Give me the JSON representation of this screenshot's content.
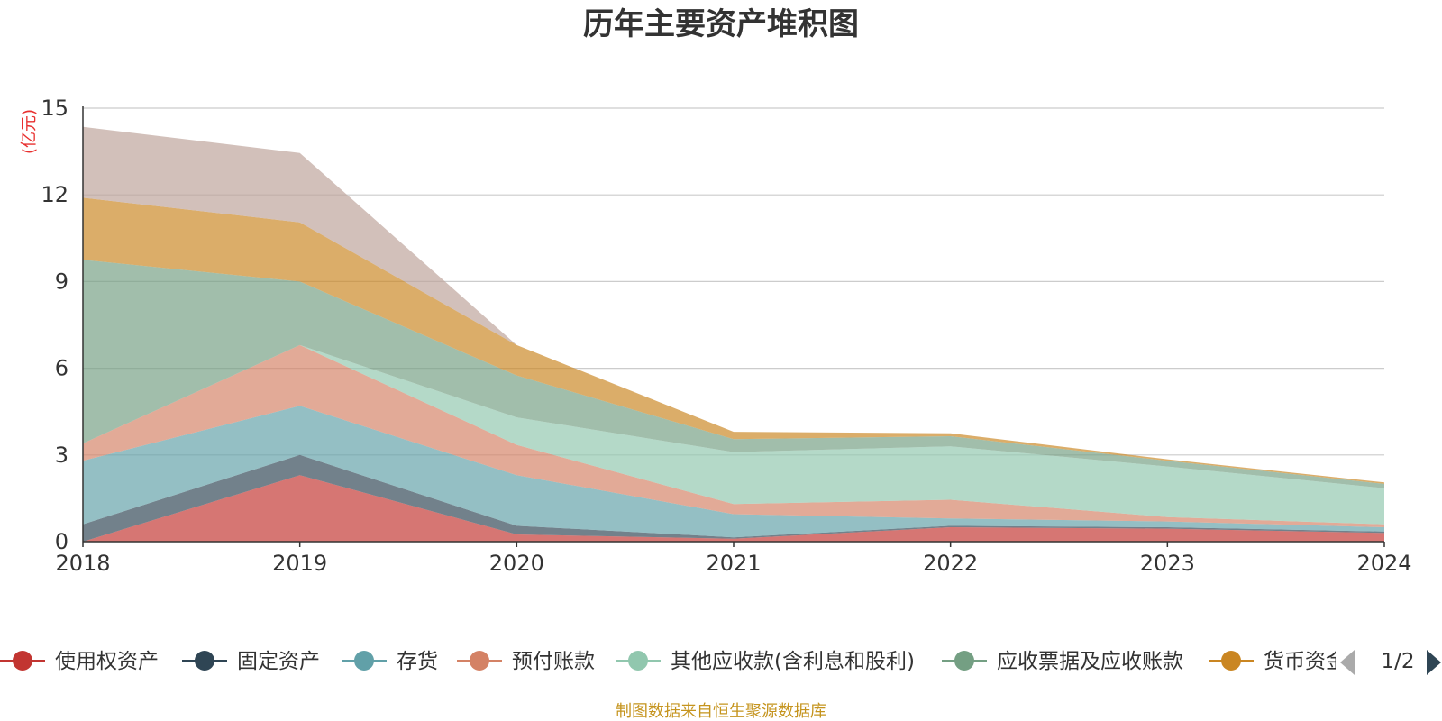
{
  "chart_data": {
    "type": "area",
    "stacked": true,
    "title": "历年主要资产堆积图",
    "ylabel": "(亿元)",
    "x": [
      "2018",
      "2019",
      "2020",
      "2021",
      "2022",
      "2023",
      "2024"
    ],
    "ylim": [
      0,
      15
    ],
    "yticks": [
      0,
      3,
      6,
      9,
      12,
      15
    ],
    "grid": true,
    "series": [
      {
        "name": "使用权资产",
        "color": "#c23531",
        "values": [
          0.0,
          2.3,
          0.25,
          0.1,
          0.5,
          0.45,
          0.3
        ]
      },
      {
        "name": "固定资产",
        "color": "#2f4554",
        "values": [
          0.6,
          0.7,
          0.3,
          0.05,
          0.05,
          0.05,
          0.05
        ]
      },
      {
        "name": "存货",
        "color": "#61a0a8",
        "values": [
          2.2,
          1.7,
          1.75,
          0.8,
          0.25,
          0.2,
          0.15
        ]
      },
      {
        "name": "预付账款",
        "color": "#d48265",
        "values": [
          0.6,
          2.1,
          1.05,
          0.35,
          0.65,
          0.15,
          0.1
        ]
      },
      {
        "name": "其他应收款(含利息和股利)",
        "color": "#91c7ae",
        "values": [
          0.0,
          0.0,
          0.95,
          1.8,
          1.85,
          1.75,
          1.25
        ]
      },
      {
        "name": "应收票据及应收账款",
        "color": "#749f83",
        "values": [
          6.35,
          2.2,
          1.45,
          0.45,
          0.35,
          0.2,
          0.15
        ]
      },
      {
        "name": "货币资金",
        "color": "#ca8622",
        "values": [
          2.15,
          2.05,
          1.05,
          0.25,
          0.1,
          0.05,
          0.05
        ]
      },
      {
        "name": "",
        "color": "#bda29a",
        "values": [
          2.45,
          2.4,
          0.0,
          0.0,
          0.0,
          0.0,
          0.0
        ]
      }
    ],
    "legend": {
      "position": "bottom",
      "items": [
        "使用权资产",
        "固定资产",
        "存货",
        "预付账款",
        "其他应收款(含利息和股利)",
        "应收票据及应收账款",
        "货币资金"
      ],
      "page": "1/2"
    }
  },
  "source_note": "制图数据来自恒生聚源数据库"
}
